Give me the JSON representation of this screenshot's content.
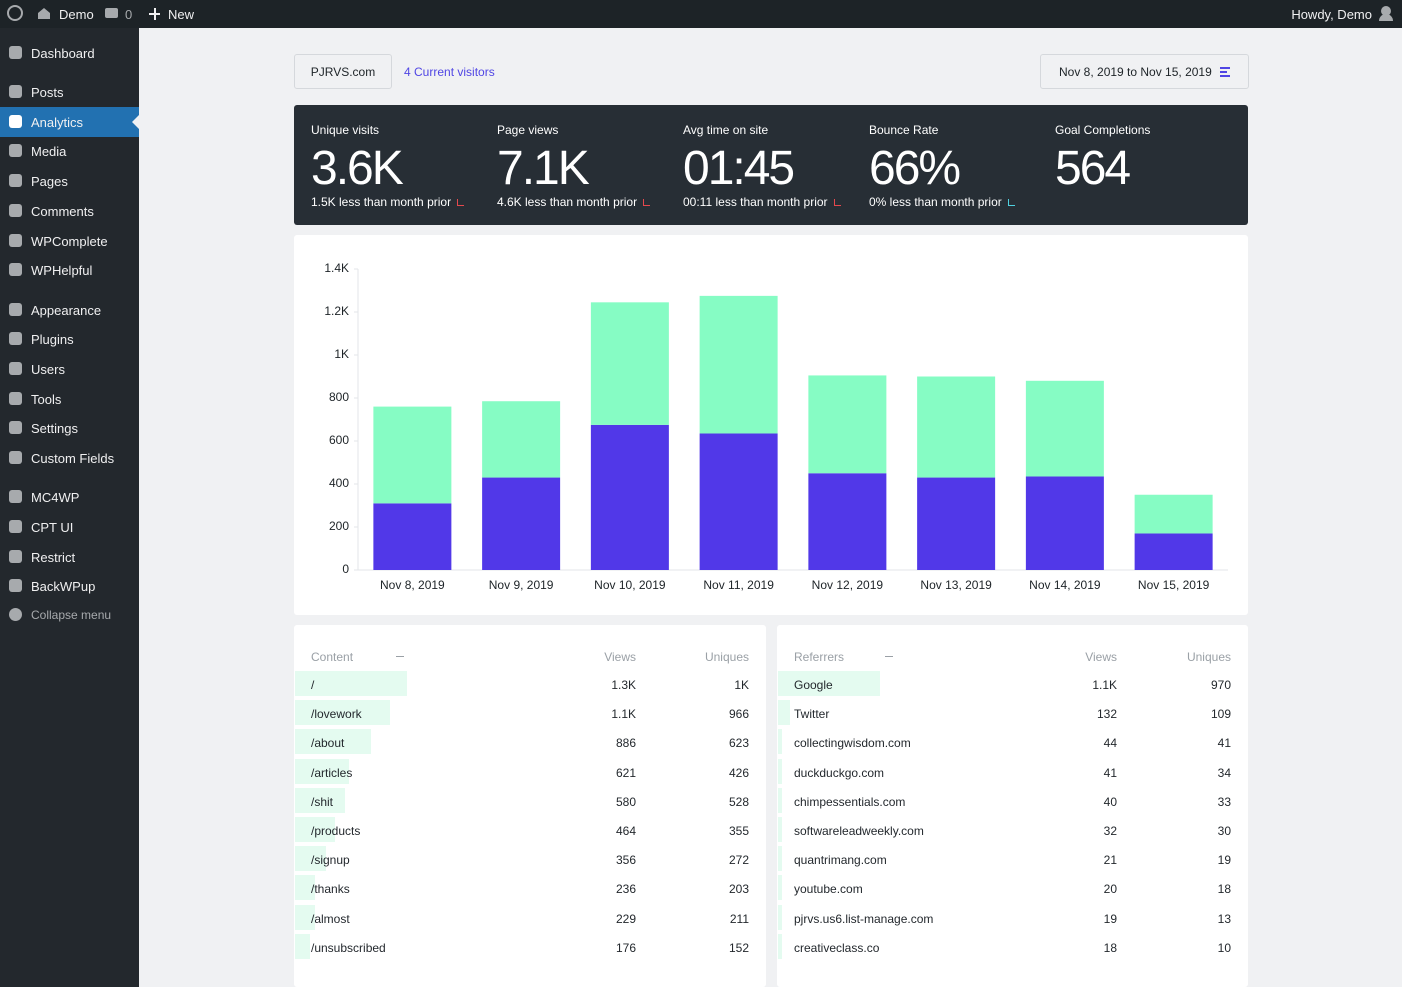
{
  "admin_bar": {
    "site": "Demo",
    "comments": "0",
    "new": "New",
    "greeting": "Howdy, Demo"
  },
  "menu": [
    "Dashboard",
    "Posts",
    "Analytics",
    "Media",
    "Pages",
    "Comments",
    "WPComplete",
    "WPHelpful",
    "Appearance",
    "Plugins",
    "Users",
    "Tools",
    "Settings",
    "Custom Fields",
    "MC4WP",
    "CPT UI",
    "Restrict",
    "BackWPup",
    "Collapse menu"
  ],
  "header": {
    "site": "PJRVS.com",
    "visitors": "4 Current visitors",
    "date_range": "Nov 8, 2019 to Nov 15, 2019"
  },
  "stats": [
    {
      "label": "Unique visits",
      "value": "3.6K",
      "change": "1.5K less than month prior"
    },
    {
      "label": "Page views",
      "value": "7.1K",
      "change": "4.6K less than month prior"
    },
    {
      "label": "Avg time on site",
      "value": "01:45",
      "change": "00:11 less than month prior"
    },
    {
      "label": "Bounce Rate",
      "value": "66%",
      "change": "0% less than month prior"
    },
    {
      "label": "Goal Completions",
      "value": "564"
    }
  ],
  "chart_data": {
    "type": "bar",
    "stacked": true,
    "categories": [
      "Nov 8, 2019",
      "Nov 9, 2019",
      "Nov 10, 2019",
      "Nov 11, 2019",
      "Nov 12, 2019",
      "Nov 13, 2019",
      "Nov 14, 2019",
      "Nov 15, 2019"
    ],
    "series": [
      {
        "color": "#5138e8",
        "values": [
          310,
          430,
          675,
          635,
          450,
          430,
          435,
          170
        ]
      },
      {
        "color": "#86fcc4",
        "values": [
          450,
          355,
          570,
          640,
          455,
          470,
          445,
          180
        ]
      }
    ],
    "ylim": [
      0,
      1400
    ],
    "yticks": [
      0,
      200,
      400,
      600,
      800,
      {
        "value": 1000,
        "label": "1K"
      },
      {
        "value": 1200,
        "label": "1.2K"
      },
      {
        "value": 1400,
        "label": "1.4K"
      }
    ],
    "grid": false
  },
  "content": {
    "header": [
      "Content",
      "Views",
      "Uniques"
    ],
    "rows": [
      [
        "/",
        "1.3K",
        "1K"
      ],
      [
        "/lovework",
        "1.1K",
        "966"
      ],
      [
        "/about",
        "886",
        "623"
      ],
      [
        "/articles",
        "621",
        "426"
      ],
      [
        "/shit",
        "580",
        "528"
      ],
      [
        "/products",
        "464",
        "355"
      ],
      [
        "/signup",
        "356",
        "272"
      ],
      [
        "/thanks",
        "236",
        "203"
      ],
      [
        "/almost",
        "229",
        "211"
      ],
      [
        "/unsubscribed",
        "176",
        "152"
      ]
    ]
  },
  "referrers": {
    "header": [
      "Referrers",
      "Views",
      "Uniques"
    ],
    "rows": [
      [
        "Google",
        "1.1K",
        "970"
      ],
      [
        "Twitter",
        "132",
        "109"
      ],
      [
        "collectingwisdom.com",
        "44",
        "41"
      ],
      [
        "duckduckgo.com",
        "41",
        "34"
      ],
      [
        "chimpessentials.com",
        "40",
        "33"
      ],
      [
        "softwareleadweekly.com",
        "32",
        "30"
      ],
      [
        "quantrimang.com",
        "21",
        "19"
      ],
      [
        "youtube.com",
        "20",
        "18"
      ],
      [
        "pjrvs.us6.list-manage.com",
        "19",
        "13"
      ],
      [
        "creativeclass.co",
        "18",
        "10"
      ]
    ]
  }
}
